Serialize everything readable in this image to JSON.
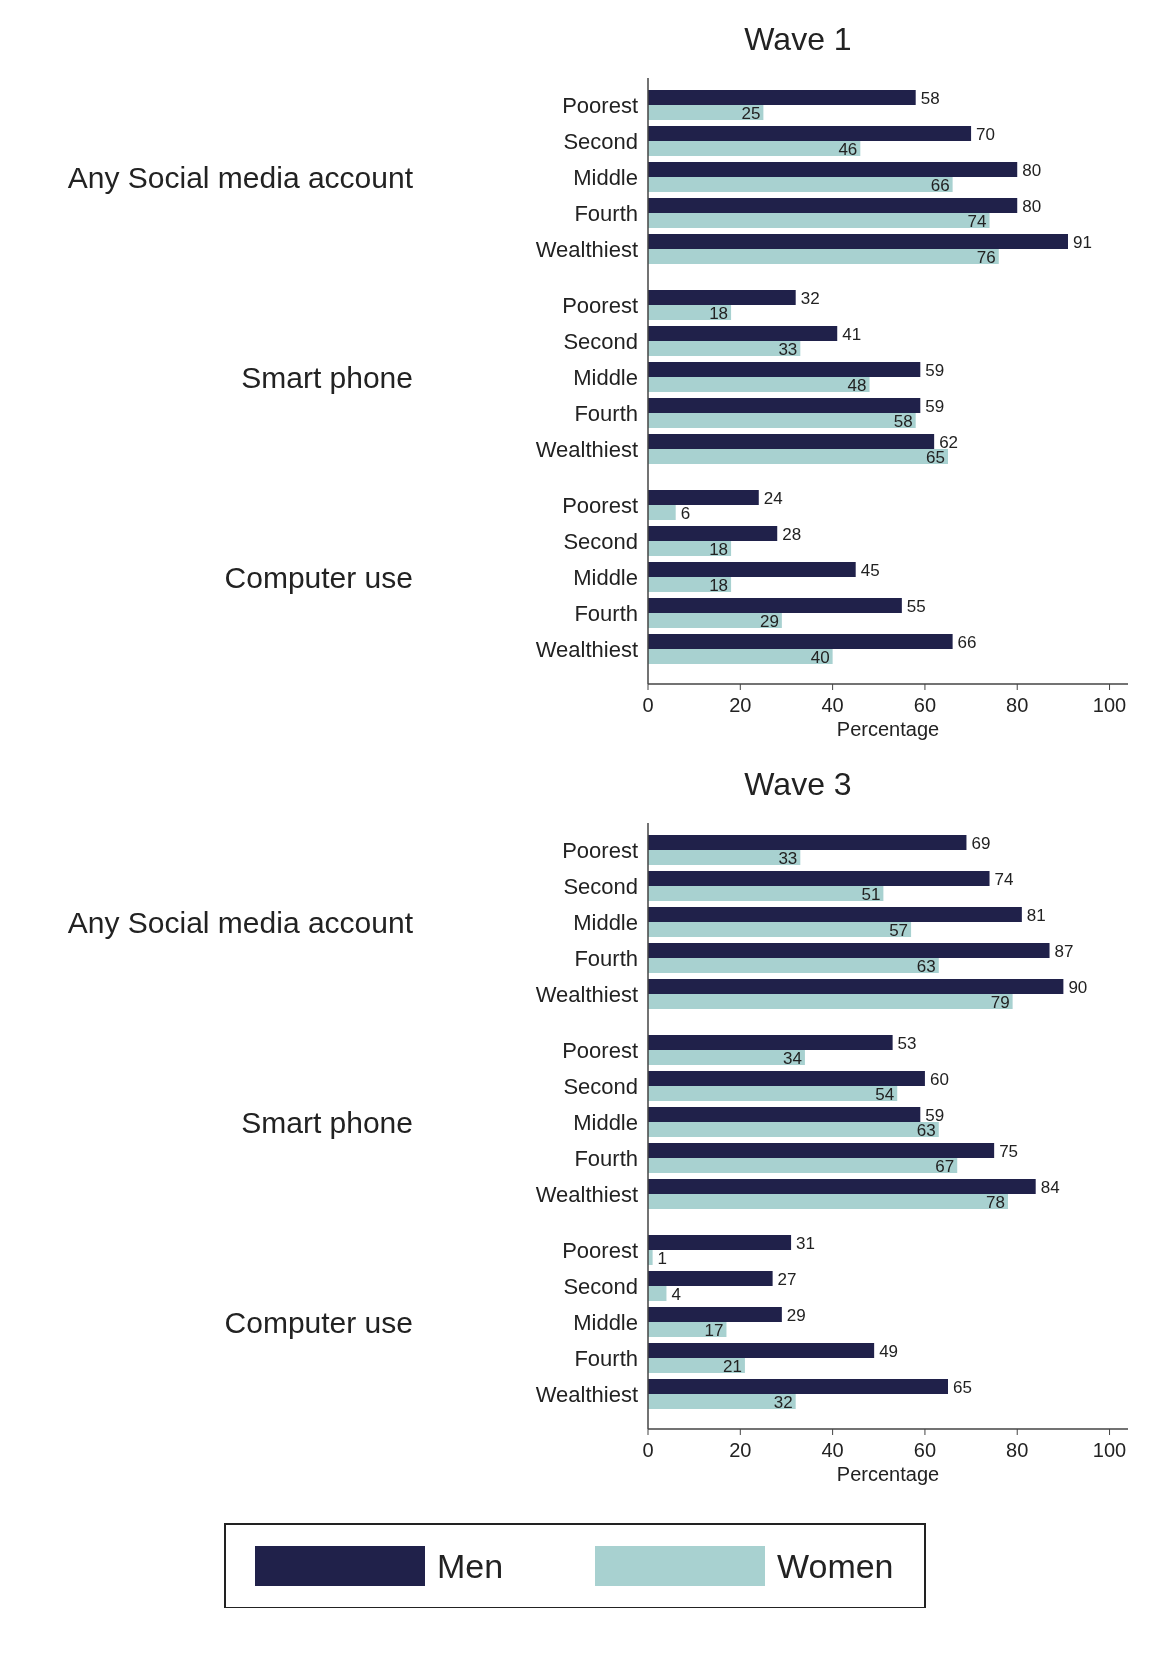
{
  "chart_data": [
    {
      "type": "bar",
      "orientation": "horizontal",
      "title": "Wave 1",
      "xlabel": "Percentage",
      "categories": [
        "Poorest",
        "Second",
        "Middle",
        "Fourth",
        "Wealthiest",
        "Poorest",
        "Second",
        "Middle",
        "Fourth",
        "Wealthiest",
        "Poorest",
        "Second",
        "Middle",
        "Fourth",
        "Wealthiest"
      ],
      "annotations": [
        "Any Social media account",
        "Smart phone",
        "Computer use"
      ],
      "series": [
        {
          "color": "#20214a",
          "values": [
            58,
            70,
            80,
            80,
            91,
            32,
            41,
            59,
            59,
            62,
            24,
            28,
            45,
            55,
            66
          ]
        },
        {
          "color": "#a8d1d0",
          "values": [
            25,
            46,
            66,
            74,
            76,
            18,
            33,
            48,
            58,
            65,
            6,
            18,
            18,
            29,
            40
          ]
        }
      ],
      "xlim": [
        0,
        104
      ],
      "xticks": [
        0,
        20,
        40,
        60,
        80,
        100
      ],
      "data_labels": true,
      "grid": false
    },
    {
      "type": "bar",
      "orientation": "horizontal",
      "title": "Wave 3",
      "xlabel": "Percentage",
      "categories": [
        "Poorest",
        "Second",
        "Middle",
        "Fourth",
        "Wealthiest",
        "Poorest",
        "Second",
        "Middle",
        "Fourth",
        "Wealthiest",
        "Poorest",
        "Second",
        "Middle",
        "Fourth",
        "Wealthiest"
      ],
      "annotations": [
        "Any Social media account",
        "Smart phone",
        "Computer use"
      ],
      "series": [
        {
          "name": "Men",
          "color": "#20214a",
          "values": [
            69,
            74,
            81,
            87,
            90,
            53,
            60,
            59,
            75,
            84,
            31,
            27,
            29,
            49,
            65
          ]
        },
        {
          "name": "Women",
          "color": "#a8d1d0",
          "values": [
            33,
            51,
            57,
            63,
            79,
            34,
            54,
            63,
            67,
            78,
            1,
            4,
            17,
            21,
            32
          ]
        }
      ],
      "xlim": [
        0,
        104
      ],
      "xticks": [
        0,
        20,
        40,
        60,
        80,
        100
      ],
      "data_labels": true,
      "grid": false,
      "legend": "bottom"
    }
  ]
}
